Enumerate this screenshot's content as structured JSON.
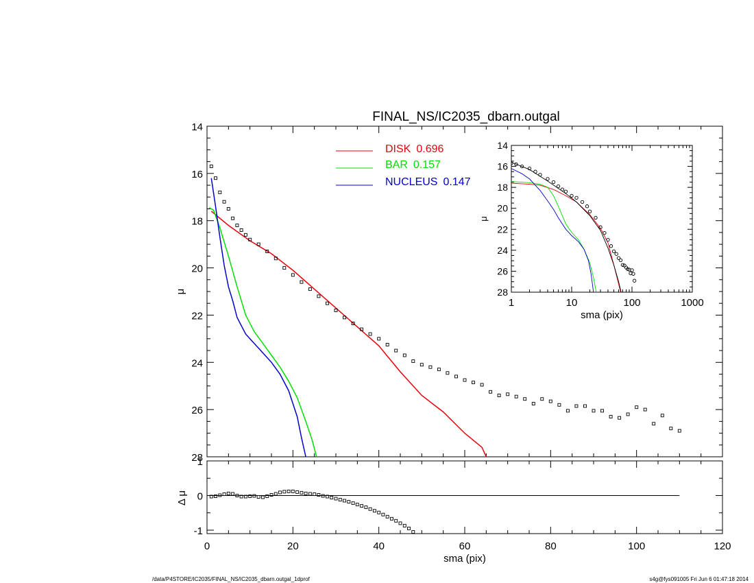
{
  "chart_data": [
    {
      "type": "scatter",
      "panel": "main",
      "title": "FINAL_NS/IC2035_dbarn.outgal",
      "xlabel": "",
      "ylabel": "μ",
      "xlim": [
        0,
        120
      ],
      "ylim": [
        28,
        14
      ],
      "y_inverted": true,
      "xticks": [
        0,
        20,
        40,
        60,
        80,
        100,
        120
      ],
      "yticks": [
        14,
        16,
        18,
        20,
        22,
        24,
        26,
        28
      ],
      "legend_placement": "top-center",
      "series": [
        {
          "name": "DISK",
          "fraction": "0.696",
          "color": "#e8000b",
          "kind": "line",
          "x": [
            1,
            5,
            10,
            15,
            20,
            25,
            30,
            35,
            40,
            45,
            50,
            55,
            60,
            64,
            65
          ],
          "y": [
            17.6,
            18.2,
            18.85,
            19.4,
            20.1,
            20.9,
            21.7,
            22.5,
            23.3,
            24.4,
            25.4,
            26.1,
            27.0,
            27.6,
            28.0
          ]
        },
        {
          "name": "BAR",
          "fraction": "0.157",
          "color": "#00e000",
          "kind": "line",
          "x": [
            0.5,
            1.5,
            3,
            5,
            7,
            9,
            11,
            13,
            15,
            17,
            19,
            21,
            23,
            24.5,
            25.5
          ],
          "y": [
            17.45,
            17.55,
            18.3,
            19.5,
            20.8,
            22.0,
            22.7,
            23.2,
            23.7,
            24.2,
            24.8,
            25.5,
            26.5,
            27.3,
            28.0
          ]
        },
        {
          "name": "NUCLEUS",
          "fraction": "0.147",
          "color": "#0000cc",
          "kind": "line",
          "x": [
            1,
            2,
            3,
            4,
            5,
            6,
            7,
            9,
            11,
            13,
            15,
            17,
            19,
            21,
            22,
            23
          ],
          "y": [
            16.2,
            17.4,
            18.7,
            19.9,
            20.8,
            21.4,
            22.1,
            22.8,
            23.2,
            23.6,
            24.0,
            24.5,
            25.2,
            26.3,
            27.2,
            28.0
          ]
        },
        {
          "name": "",
          "color": "#000000",
          "kind": "markers",
          "x": [
            1,
            2,
            3,
            4,
            5,
            6,
            7,
            8,
            9,
            10,
            12,
            14,
            16,
            18,
            20,
            22,
            24,
            26,
            28,
            30,
            32,
            34,
            36,
            38,
            40,
            42,
            44,
            46,
            48,
            50,
            52,
            54,
            56,
            58,
            60,
            62,
            64,
            66,
            68,
            70,
            72,
            74,
            76,
            78,
            80,
            82,
            84,
            86,
            88,
            90,
            92,
            94,
            96,
            98,
            100,
            102,
            104,
            106,
            108,
            110
          ],
          "y": [
            15.7,
            16.2,
            16.8,
            17.2,
            17.5,
            17.9,
            18.2,
            18.4,
            18.6,
            18.8,
            19.0,
            19.3,
            19.6,
            20.0,
            20.3,
            20.6,
            20.9,
            21.2,
            21.5,
            21.8,
            22.1,
            22.35,
            22.6,
            22.8,
            23.0,
            23.25,
            23.5,
            23.7,
            23.95,
            24.1,
            24.2,
            24.3,
            24.45,
            24.6,
            24.75,
            24.85,
            24.95,
            25.25,
            25.4,
            25.35,
            25.45,
            25.55,
            25.75,
            25.55,
            25.65,
            25.8,
            26.05,
            25.85,
            25.85,
            26.05,
            26.05,
            26.3,
            26.35,
            26.2,
            25.9,
            26.0,
            26.6,
            26.25,
            26.8,
            26.9
          ]
        }
      ]
    },
    {
      "type": "scatter",
      "panel": "residual",
      "xlabel": "sma (pix)",
      "ylabel": "Δ μ",
      "xlim": [
        0,
        120
      ],
      "ylim": [
        -1.1,
        1.0
      ],
      "xticks": [
        0,
        20,
        40,
        60,
        80,
        100,
        120
      ],
      "yticks": [
        1,
        0,
        -1
      ],
      "zero_line_x_range": [
        0,
        110
      ],
      "series": [
        {
          "name": "",
          "color": "#000000",
          "kind": "markers",
          "x": [
            1,
            2,
            3,
            4,
            5,
            6,
            7,
            8,
            9,
            10,
            11,
            12,
            13,
            14,
            15,
            16,
            17,
            18,
            19,
            20,
            21,
            22,
            23,
            24,
            25,
            26,
            27,
            28,
            29,
            30,
            31,
            32,
            33,
            34,
            35,
            36,
            37,
            38,
            39,
            40,
            41,
            42,
            43,
            44,
            45,
            46,
            47,
            48
          ],
          "y": [
            -0.03,
            -0.02,
            0.01,
            0.04,
            0.06,
            0.05,
            0.0,
            -0.03,
            -0.03,
            -0.02,
            -0.01,
            -0.04,
            -0.05,
            -0.02,
            0.02,
            0.05,
            0.09,
            0.11,
            0.12,
            0.12,
            0.1,
            0.08,
            0.06,
            0.05,
            0.04,
            0.02,
            -0.01,
            -0.03,
            -0.06,
            -0.09,
            -0.12,
            -0.15,
            -0.18,
            -0.22,
            -0.26,
            -0.3,
            -0.34,
            -0.39,
            -0.44,
            -0.49,
            -0.55,
            -0.61,
            -0.67,
            -0.73,
            -0.8,
            -0.87,
            -0.95,
            -1.05
          ]
        }
      ]
    },
    {
      "type": "scatter",
      "panel": "inset",
      "xlabel": "sma (pix)",
      "ylabel": "μ",
      "x_scale": "log",
      "xlim": [
        1,
        1000
      ],
      "ylim": [
        28,
        14
      ],
      "y_inverted": true,
      "xticks": [
        1,
        10,
        100,
        1000
      ],
      "xtick_labels": [
        "1",
        "10",
        "100",
        "1000"
      ],
      "yticks": [
        14,
        16,
        18,
        20,
        22,
        24,
        26,
        28
      ],
      "series": [
        {
          "name": "DISK",
          "color": "#e8000b",
          "kind": "line",
          "x": [
            1,
            2,
            3,
            5,
            8,
            12,
            20,
            30,
            40,
            50,
            65
          ],
          "y": [
            17.6,
            17.7,
            17.8,
            18.2,
            18.8,
            19.4,
            20.6,
            21.9,
            23.3,
            25.4,
            28.0
          ]
        },
        {
          "name": "BAR",
          "color": "#00e000",
          "kind": "line",
          "x": [
            1,
            2,
            3,
            4,
            5,
            6,
            8,
            10,
            13,
            16,
            20,
            23,
            25.5
          ],
          "y": [
            17.45,
            17.55,
            17.7,
            18.0,
            18.8,
            19.8,
            21.5,
            22.3,
            23.0,
            23.9,
            25.2,
            26.6,
            28.0
          ]
        },
        {
          "name": "NUCLEUS",
          "color": "#0000cc",
          "kind": "line",
          "x": [
            1,
            1.5,
            2,
            3,
            4,
            5,
            6,
            8,
            10,
            13,
            16,
            19,
            21,
            23
          ],
          "y": [
            16.2,
            16.7,
            17.2,
            18.3,
            19.3,
            20.1,
            20.9,
            22.0,
            22.6,
            23.2,
            23.9,
            25.0,
            26.3,
            28.0
          ]
        },
        {
          "name": "",
          "color": "#000000",
          "kind": "line",
          "x": [
            1,
            2,
            4,
            8,
            12,
            20,
            30,
            40,
            50,
            60,
            66
          ],
          "y": [
            15.6,
            16.3,
            17.4,
            18.6,
            19.4,
            20.7,
            22.1,
            23.8,
            25.4,
            27.0,
            28.0
          ]
        },
        {
          "name": "",
          "color": "#000000",
          "kind": "markers",
          "x": [
            1,
            1.2,
            1.5,
            2,
            2.5,
            3,
            4,
            5,
            6,
            7,
            8,
            10,
            12,
            15,
            18,
            20,
            25,
            30,
            35,
            40,
            45,
            50,
            55,
            60,
            65,
            70,
            75,
            80,
            85,
            90,
            95,
            100,
            105,
            110
          ],
          "y": [
            15.7,
            15.8,
            16.0,
            16.2,
            16.5,
            16.8,
            17.2,
            17.5,
            17.9,
            18.2,
            18.4,
            18.8,
            19.0,
            19.4,
            19.8,
            20.3,
            20.9,
            21.8,
            22.35,
            23.0,
            23.6,
            24.1,
            24.35,
            24.75,
            24.95,
            25.4,
            25.45,
            25.65,
            25.8,
            25.85,
            26.2,
            25.9,
            26.25,
            26.9
          ]
        }
      ]
    }
  ],
  "legend": {
    "items": [
      {
        "name": "DISK",
        "value": "0.696",
        "color": "#e8000b"
      },
      {
        "name": "BAR",
        "value": "0.157",
        "color": "#00e000"
      },
      {
        "name": "NUCLEUS",
        "value": "0.147",
        "color": "#0000cc"
      }
    ]
  },
  "footer": {
    "left": "/data/P4STORE/IC2035/FINAL_NS/IC2035_dbarn.outgal_1dprof",
    "right": "s4g@fys091005  Fri Jun  6 01:47:18 2014"
  }
}
